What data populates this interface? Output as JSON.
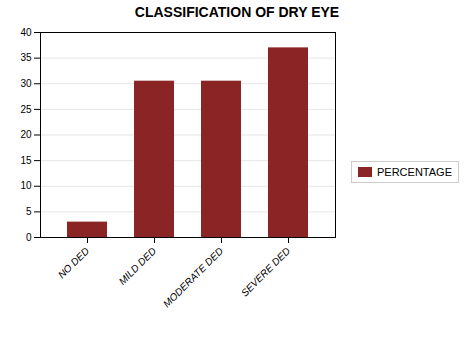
{
  "chart_data": {
    "type": "bar",
    "title": "CLASSIFICATION OF DRY EYE",
    "categories": [
      "NO DED",
      "MILD DED",
      "MODERATE DED",
      "SEVERE DED"
    ],
    "series": [
      {
        "name": "PERCENTAGE",
        "color": "#8B2525",
        "values": [
          3,
          30.5,
          30.5,
          37
        ]
      }
    ],
    "ylim": [
      0,
      40
    ],
    "yticks": [
      0,
      5,
      10,
      15,
      20,
      25,
      30,
      35,
      40
    ],
    "grid": true,
    "legend": "right"
  }
}
